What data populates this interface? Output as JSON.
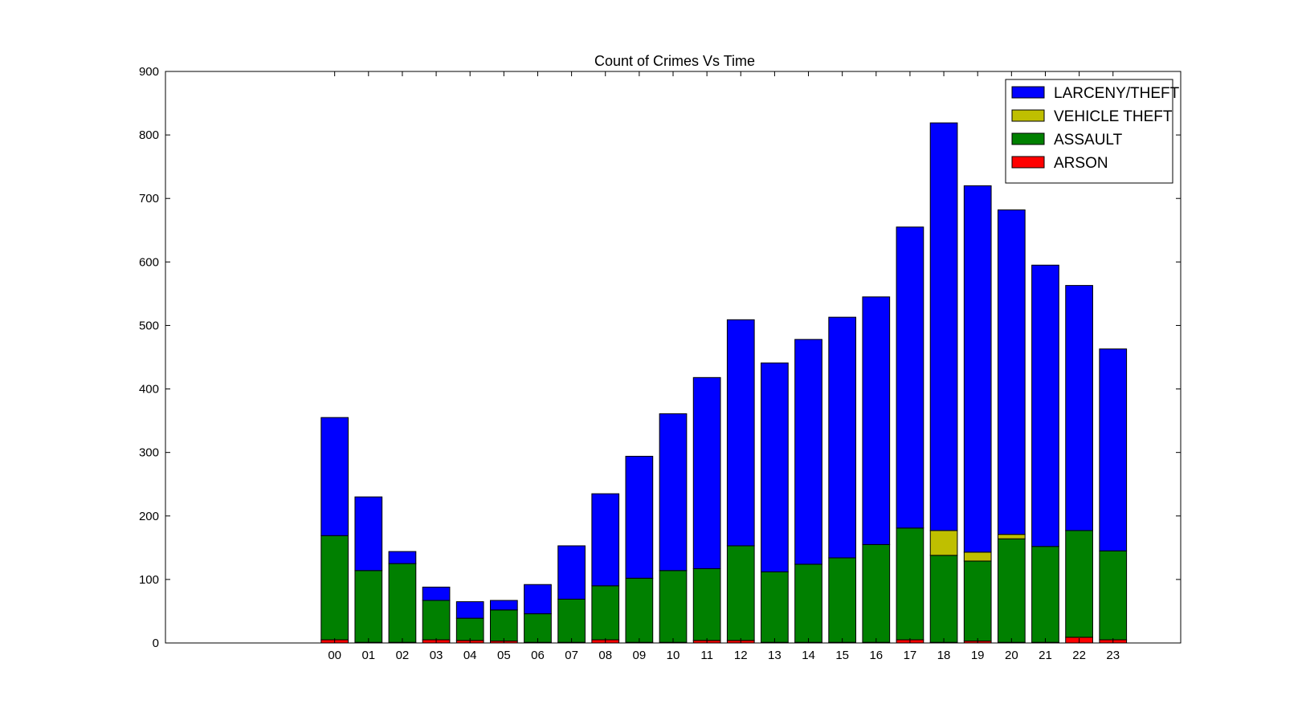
{
  "chart_data": {
    "type": "bar",
    "stacked": true,
    "title": "Count of Crimes Vs Time",
    "xlabel": "",
    "ylabel": "",
    "ylim": [
      0,
      900
    ],
    "yticks": [
      "0",
      "100",
      "200",
      "300",
      "400",
      "500",
      "600",
      "700",
      "800",
      "900"
    ],
    "xlim": [
      -5,
      25
    ],
    "categories": [
      "00",
      "01",
      "02",
      "03",
      "04",
      "05",
      "06",
      "07",
      "08",
      "09",
      "10",
      "11",
      "12",
      "13",
      "14",
      "15",
      "16",
      "17",
      "18",
      "19",
      "20",
      "21",
      "22",
      "23"
    ],
    "grid": false,
    "legend_position": "top-right",
    "series": [
      {
        "name": "ARSON",
        "color": "#ff0000",
        "values": [
          5,
          1,
          1,
          5,
          4,
          3,
          1,
          1,
          5,
          1,
          1,
          4,
          4,
          1,
          1,
          1,
          1,
          5,
          1,
          3,
          1,
          1,
          9,
          5
        ]
      },
      {
        "name": "ASSAULT",
        "color": "#008000",
        "values": [
          164,
          113,
          124,
          62,
          35,
          49,
          45,
          68,
          85,
          101,
          113,
          113,
          149,
          111,
          123,
          133,
          154,
          176,
          137,
          126,
          163,
          151,
          168,
          140
        ]
      },
      {
        "name": "VEHICLE THEFT",
        "color": "#bfbf00",
        "values": [
          0,
          0,
          0,
          0,
          0,
          0,
          0,
          0,
          0,
          0,
          0,
          0,
          0,
          0,
          0,
          0,
          0,
          0,
          39,
          14,
          7,
          0,
          0,
          0
        ]
      },
      {
        "name": "LARCENY/THEFT",
        "color": "#0000ff",
        "values": [
          186,
          116,
          19,
          21,
          26,
          15,
          46,
          84,
          145,
          192,
          247,
          301,
          356,
          329,
          354,
          379,
          390,
          474,
          642,
          577,
          511,
          443,
          386,
          318
        ]
      }
    ],
    "legend_order": [
      "LARCENY/THEFT",
      "VEHICLE THEFT",
      "ASSAULT",
      "ARSON"
    ]
  }
}
